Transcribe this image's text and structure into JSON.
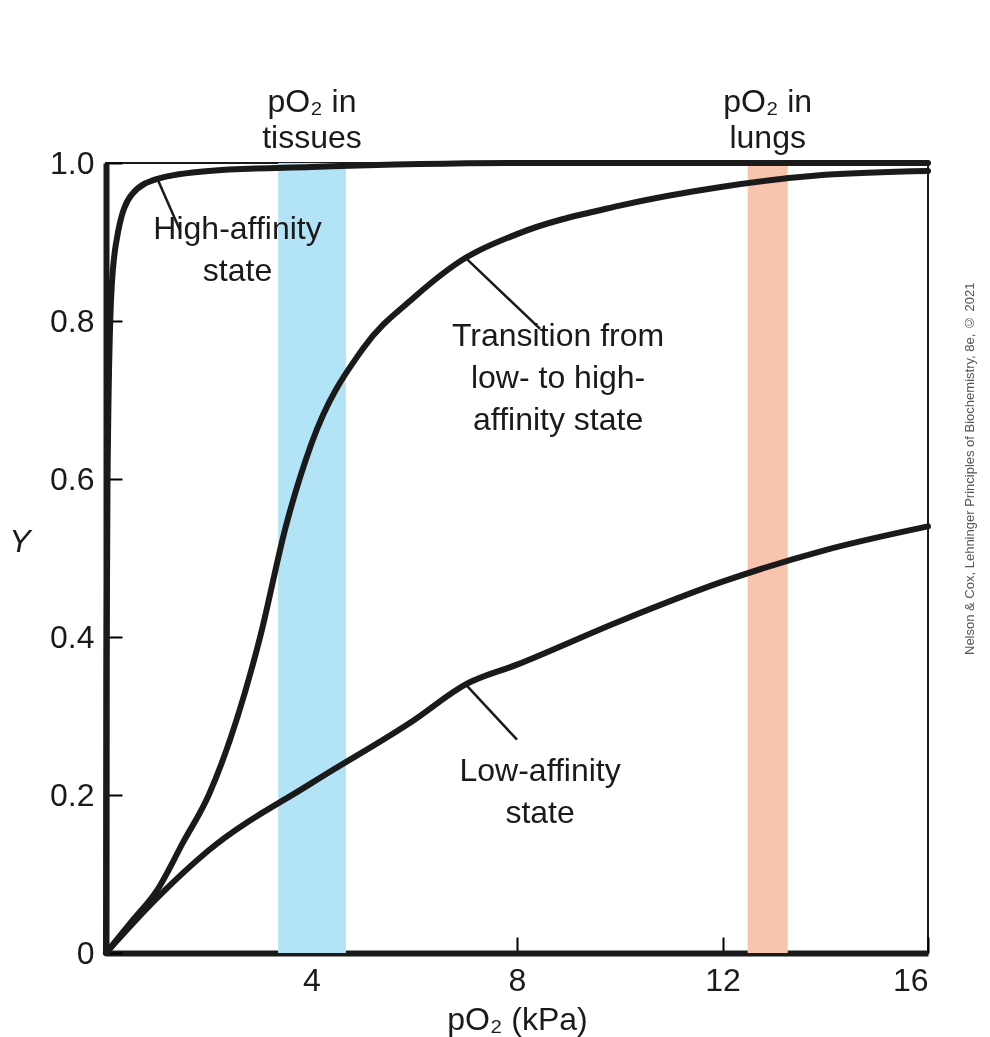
{
  "chart_data": {
    "type": "line",
    "xlabel": "pO₂ (kPa)",
    "ylabel": "Y",
    "xlim": [
      0,
      16
    ],
    "xticks": [
      4,
      8,
      12,
      16
    ],
    "ylim": [
      0,
      1
    ],
    "yticks": [
      0,
      0.2,
      0.4,
      0.6,
      0.8,
      {
        "value": 1,
        "label": "1.0"
      }
    ],
    "grid": false,
    "marker": "none",
    "line_style": "solid",
    "series": [
      {
        "color": "#1a1a1a",
        "x": [
          0,
          0.01,
          0.03,
          0.1,
          0.2,
          0.5,
          1,
          2,
          4,
          8,
          16
        ],
        "values": [
          0,
          0.35,
          0.6,
          0.83,
          0.9,
          0.96,
          0.98,
          0.99,
          0.995,
          1,
          1
        ]
      },
      {
        "color": "#1a1a1a",
        "x": [
          0,
          0.5,
          1,
          1.5,
          2,
          3,
          3.5,
          4,
          5,
          6,
          7,
          8,
          10,
          12,
          14,
          16
        ],
        "values": [
          0,
          0.04,
          0.08,
          0.14,
          0.2,
          0.4,
          0.54,
          0.645,
          0.765,
          0.83,
          0.88,
          0.91,
          0.946,
          0.97,
          0.985,
          0.99
        ]
      },
      {
        "color": "#1a1a1a",
        "x": [
          0,
          1,
          2,
          4,
          6,
          7,
          8,
          10,
          12,
          14,
          16
        ],
        "values": [
          0,
          0.07,
          0.13,
          0.215,
          0.295,
          0.34,
          0.365,
          0.42,
          0.47,
          0.51,
          0.54
        ]
      }
    ],
    "bands": [
      {
        "axis": "x",
        "from": 3.35,
        "to": 4.67,
        "label": "pO₂ in\ntissues",
        "color": "#b3e3f7"
      },
      {
        "axis": "x",
        "from": 12.49,
        "to": 13.27,
        "label": "pO₂ in\nlungs",
        "color": "#f9c4ae"
      }
    ],
    "annotations": [
      "High-affinity state",
      {
        "text": "Transition from low- to high-affinity state",
        "x": 7,
        "y": 0.88
      },
      {
        "text": "Low-affinity state",
        "x": 7,
        "y": 0.34
      },
      "Nelson & Cox, Lehninger Principles of Biochemistry, 8e, © 2021"
    ]
  }
}
